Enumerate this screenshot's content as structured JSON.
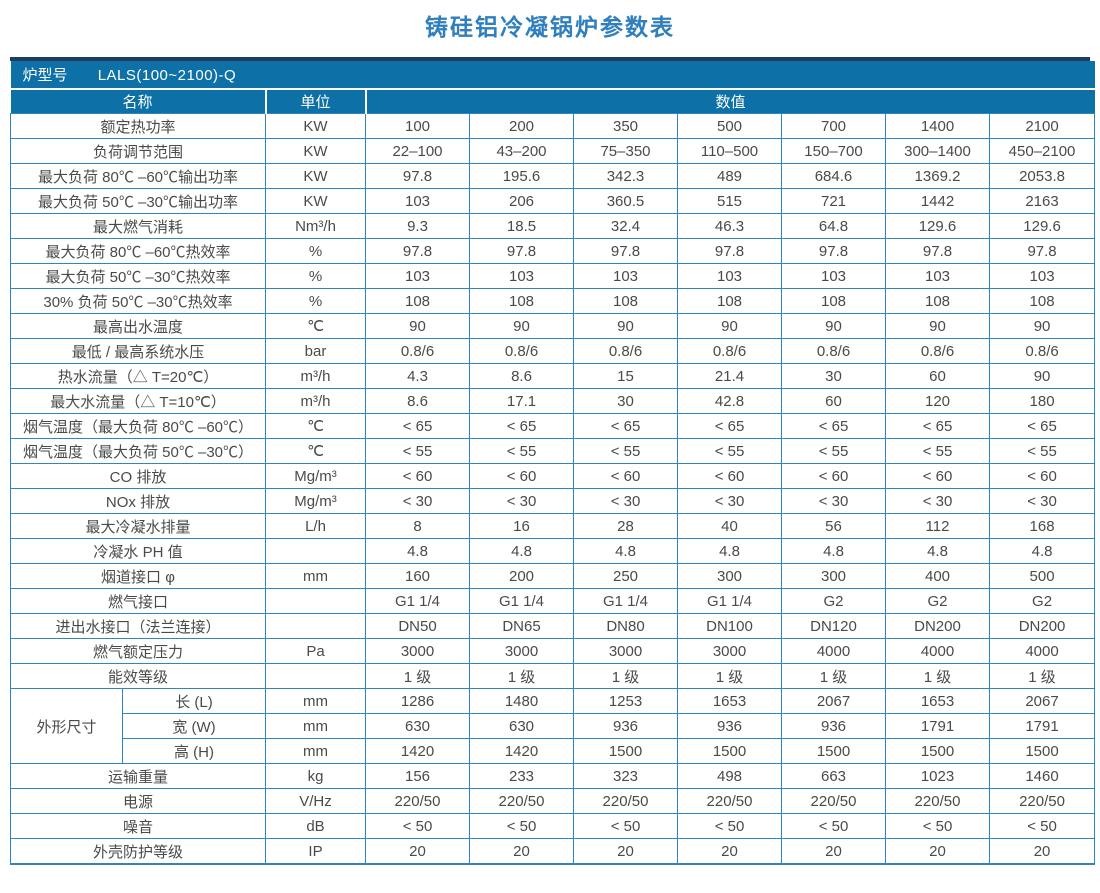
{
  "title": "铸硅铝冷凝锅炉参数表",
  "colors": {
    "header_bg": "#0d70a6",
    "top_bar": "#1e3c60",
    "border": "#2e86c1",
    "title": "#2f7fbe",
    "text": "#4a4a4a"
  },
  "table": {
    "model_label": "炉型号",
    "model_value": "LALS(100~2100)-Q",
    "col_headers": {
      "name": "名称",
      "unit": "单位",
      "value": "数值"
    },
    "rows": [
      {
        "name": "额定热功率",
        "unit": "KW",
        "values": [
          "100",
          "200",
          "350",
          "500",
          "700",
          "1400",
          "2100"
        ]
      },
      {
        "name": "负荷调节范围",
        "unit": "KW",
        "values": [
          "22–100",
          "43–200",
          "75–350",
          "110–500",
          "150–700",
          "300–1400",
          "450–2100"
        ]
      },
      {
        "name": "最大负荷 80℃ –60℃输出功率",
        "unit": "KW",
        "values": [
          "97.8",
          "195.6",
          "342.3",
          "489",
          "684.6",
          "1369.2",
          "2053.8"
        ]
      },
      {
        "name": "最大负荷 50℃ –30℃输出功率",
        "unit": "KW",
        "values": [
          "103",
          "206",
          "360.5",
          "515",
          "721",
          "1442",
          "2163"
        ]
      },
      {
        "name": "最大燃气消耗",
        "unit": "Nm³/h",
        "values": [
          "9.3",
          "18.5",
          "32.4",
          "46.3",
          "64.8",
          "129.6",
          "129.6"
        ]
      },
      {
        "name": "最大负荷 80℃ –60℃热效率",
        "unit": "%",
        "values": [
          "97.8",
          "97.8",
          "97.8",
          "97.8",
          "97.8",
          "97.8",
          "97.8"
        ]
      },
      {
        "name": "最大负荷 50℃ –30℃热效率",
        "unit": "%",
        "values": [
          "103",
          "103",
          "103",
          "103",
          "103",
          "103",
          "103"
        ]
      },
      {
        "name": "30% 负荷 50℃ –30℃热效率",
        "unit": "%",
        "values": [
          "108",
          "108",
          "108",
          "108",
          "108",
          "108",
          "108"
        ]
      },
      {
        "name": "最高出水温度",
        "unit": "℃",
        "values": [
          "90",
          "90",
          "90",
          "90",
          "90",
          "90",
          "90"
        ]
      },
      {
        "name": "最低 / 最高系统水压",
        "unit": "bar",
        "values": [
          "0.8/6",
          "0.8/6",
          "0.8/6",
          "0.8/6",
          "0.8/6",
          "0.8/6",
          "0.8/6"
        ]
      },
      {
        "name": "热水流量（△ T=20℃）",
        "unit": "m³/h",
        "values": [
          "4.3",
          "8.6",
          "15",
          "21.4",
          "30",
          "60",
          "90"
        ]
      },
      {
        "name": "最大水流量（△ T=10℃）",
        "unit": "m³/h",
        "values": [
          "8.6",
          "17.1",
          "30",
          "42.8",
          "60",
          "120",
          "180"
        ]
      },
      {
        "name": "烟气温度（最大负荷 80℃ –60℃）",
        "unit": "℃",
        "values": [
          "< 65",
          "< 65",
          "< 65",
          "< 65",
          "< 65",
          "< 65",
          "< 65"
        ]
      },
      {
        "name": "烟气温度（最大负荷 50℃ –30℃）",
        "unit": "℃",
        "values": [
          "< 55",
          "< 55",
          "< 55",
          "< 55",
          "< 55",
          "< 55",
          "< 55"
        ]
      },
      {
        "name": "CO 排放",
        "unit": "Mg/m³",
        "values": [
          "< 60",
          "< 60",
          "< 60",
          "< 60",
          "< 60",
          "< 60",
          "< 60"
        ]
      },
      {
        "name": "NOx 排放",
        "unit": "Mg/m³",
        "values": [
          "< 30",
          "< 30",
          "< 30",
          "< 30",
          "< 30",
          "< 30",
          "< 30"
        ]
      },
      {
        "name": "最大冷凝水排量",
        "unit": "L/h",
        "values": [
          "8",
          "16",
          "28",
          "40",
          "56",
          "112",
          "168"
        ]
      },
      {
        "name": "冷凝水 PH 值",
        "unit": "",
        "values": [
          "4.8",
          "4.8",
          "4.8",
          "4.8",
          "4.8",
          "4.8",
          "4.8"
        ]
      },
      {
        "name": "烟道接口 φ",
        "unit": "mm",
        "values": [
          "160",
          "200",
          "250",
          "300",
          "300",
          "400",
          "500"
        ]
      },
      {
        "name": "燃气接口",
        "unit": "",
        "values": [
          "G1 1/4",
          "G1 1/4",
          "G1 1/4",
          "G1 1/4",
          "G2",
          "G2",
          "G2"
        ]
      },
      {
        "name": "进出水接口（法兰连接）",
        "unit": "",
        "values": [
          "DN50",
          "DN65",
          "DN80",
          "DN100",
          "DN120",
          "DN200",
          "DN200"
        ]
      },
      {
        "name": "燃气额定压力",
        "unit": "Pa",
        "values": [
          "3000",
          "3000",
          "3000",
          "3000",
          "4000",
          "4000",
          "4000"
        ]
      },
      {
        "name": "能效等级",
        "unit": "",
        "values": [
          "1 级",
          "1 级",
          "1 级",
          "1 级",
          "1 级",
          "1 级",
          "1 级"
        ]
      }
    ],
    "dim_group": {
      "label": "外形尺寸",
      "rows": [
        {
          "name": "长 (L)",
          "unit": "mm",
          "values": [
            "1286",
            "1480",
            "1253",
            "1653",
            "2067",
            "1653",
            "2067"
          ]
        },
        {
          "name": "宽 (W)",
          "unit": "mm",
          "values": [
            "630",
            "630",
            "936",
            "936",
            "936",
            "1791",
            "1791"
          ]
        },
        {
          "name": "高 (H)",
          "unit": "mm",
          "values": [
            "1420",
            "1420",
            "1500",
            "1500",
            "1500",
            "1500",
            "1500"
          ]
        }
      ]
    },
    "rows_after": [
      {
        "name": "运输重量",
        "unit": "kg",
        "values": [
          "156",
          "233",
          "323",
          "498",
          "663",
          "1023",
          "1460"
        ]
      },
      {
        "name": "电源",
        "unit": "V/Hz",
        "values": [
          "220/50",
          "220/50",
          "220/50",
          "220/50",
          "220/50",
          "220/50",
          "220/50"
        ]
      },
      {
        "name": "噪音",
        "unit": "dB",
        "values": [
          "< 50",
          "< 50",
          "< 50",
          "< 50",
          "< 50",
          "< 50",
          "< 50"
        ]
      },
      {
        "name": "外壳防护等级",
        "unit": "IP",
        "values": [
          "20",
          "20",
          "20",
          "20",
          "20",
          "20",
          "20"
        ]
      }
    ]
  }
}
